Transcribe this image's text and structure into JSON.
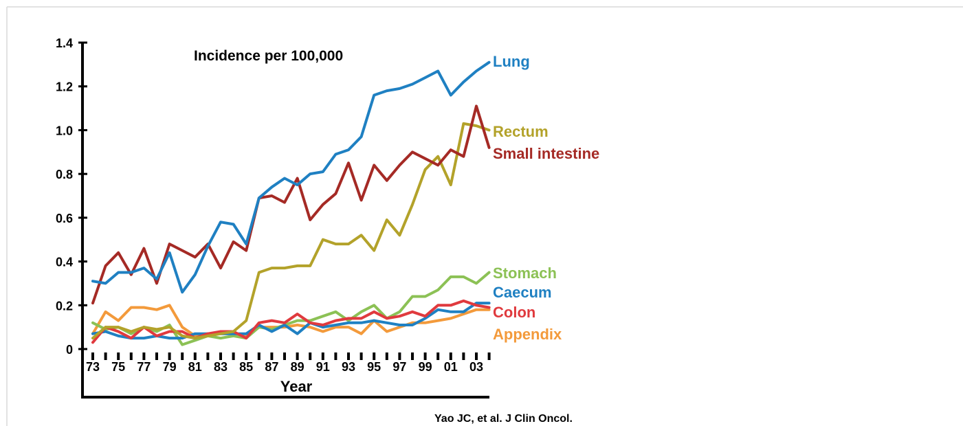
{
  "chart_data": {
    "type": "line",
    "title": "Incidence per 100,000",
    "xlabel": "Year",
    "ylabel": "",
    "source": "Yao JC, et al. J Clin Oncol.",
    "ylim": [
      0,
      1.4
    ],
    "yticks": [
      "0",
      "0.2",
      "0.4",
      "0.6",
      "0.8",
      "1.0",
      "1.2",
      "1.4"
    ],
    "ytick_values": [
      0,
      0.2,
      0.4,
      0.6,
      0.8,
      1.0,
      1.2,
      1.4
    ],
    "xtick_labels": [
      "73",
      "75",
      "77",
      "79",
      "81",
      "83",
      "85",
      "87",
      "89",
      "91",
      "93",
      "95",
      "97",
      "99",
      "01",
      "03"
    ],
    "x": [
      1973,
      1974,
      1975,
      1976,
      1977,
      1978,
      1979,
      1980,
      1981,
      1982,
      1983,
      1984,
      1985,
      1986,
      1987,
      1988,
      1989,
      1990,
      1991,
      1992,
      1993,
      1994,
      1995,
      1996,
      1997,
      1998,
      1999,
      2000,
      2001,
      2002,
      2003,
      2004
    ],
    "series": [
      {
        "name": "Lung",
        "color": "#1f80c2",
        "values": [
          0.31,
          0.3,
          0.35,
          0.35,
          0.37,
          0.32,
          0.44,
          0.26,
          0.34,
          0.47,
          0.58,
          0.57,
          0.48,
          0.69,
          0.74,
          0.78,
          0.75,
          0.8,
          0.81,
          0.89,
          0.91,
          0.97,
          1.16,
          1.18,
          1.19,
          1.21,
          1.24,
          1.27,
          1.16,
          1.22,
          1.27,
          1.31
        ]
      },
      {
        "name": "Rectum",
        "color": "#b3a22a",
        "values": [
          0.05,
          0.1,
          0.1,
          0.08,
          0.1,
          0.09,
          0.1,
          0.06,
          0.05,
          0.06,
          0.07,
          0.08,
          0.13,
          0.35,
          0.37,
          0.37,
          0.38,
          0.38,
          0.5,
          0.48,
          0.48,
          0.52,
          0.45,
          0.59,
          0.52,
          0.66,
          0.82,
          0.88,
          0.75,
          1.03,
          1.02,
          1.0
        ]
      },
      {
        "name": "Small intestine",
        "color": "#a52a25",
        "values": [
          0.21,
          0.38,
          0.44,
          0.34,
          0.46,
          0.3,
          0.48,
          0.45,
          0.42,
          0.48,
          0.37,
          0.49,
          0.45,
          0.69,
          0.7,
          0.67,
          0.78,
          0.59,
          0.66,
          0.71,
          0.85,
          0.68,
          0.84,
          0.77,
          0.84,
          0.9,
          0.87,
          0.84,
          0.91,
          0.88,
          1.11,
          0.92
        ]
      },
      {
        "name": "Stomach",
        "color": "#8cc155",
        "values": [
          0.12,
          0.09,
          0.1,
          0.07,
          0.1,
          0.08,
          0.11,
          0.02,
          0.04,
          0.06,
          0.05,
          0.06,
          0.05,
          0.1,
          0.09,
          0.11,
          0.13,
          0.13,
          0.15,
          0.17,
          0.13,
          0.17,
          0.2,
          0.14,
          0.17,
          0.24,
          0.24,
          0.27,
          0.33,
          0.33,
          0.3,
          0.35
        ]
      },
      {
        "name": "Caecum",
        "color": "#1f80c2",
        "values": [
          0.07,
          0.08,
          0.06,
          0.05,
          0.05,
          0.06,
          0.05,
          0.05,
          0.07,
          0.07,
          0.07,
          0.07,
          0.07,
          0.11,
          0.08,
          0.11,
          0.07,
          0.12,
          0.1,
          0.11,
          0.12,
          0.12,
          0.13,
          0.12,
          0.11,
          0.11,
          0.14,
          0.18,
          0.17,
          0.17,
          0.21,
          0.21
        ]
      },
      {
        "name": "Colon",
        "color": "#e03a3e",
        "values": [
          0.03,
          0.1,
          0.08,
          0.05,
          0.1,
          0.06,
          0.08,
          0.08,
          0.05,
          0.07,
          0.08,
          0.08,
          0.05,
          0.12,
          0.13,
          0.12,
          0.16,
          0.12,
          0.11,
          0.13,
          0.14,
          0.14,
          0.17,
          0.14,
          0.15,
          0.17,
          0.15,
          0.2,
          0.2,
          0.22,
          0.2,
          0.19
        ]
      },
      {
        "name": "Appendix",
        "color": "#f39a3b",
        "values": [
          0.07,
          0.17,
          0.13,
          0.19,
          0.19,
          0.18,
          0.2,
          0.1,
          0.06,
          0.07,
          0.07,
          0.07,
          0.06,
          0.1,
          0.1,
          0.1,
          0.11,
          0.1,
          0.08,
          0.1,
          0.1,
          0.07,
          0.13,
          0.08,
          0.1,
          0.12,
          0.12,
          0.13,
          0.14,
          0.16,
          0.18,
          0.18
        ]
      }
    ]
  }
}
